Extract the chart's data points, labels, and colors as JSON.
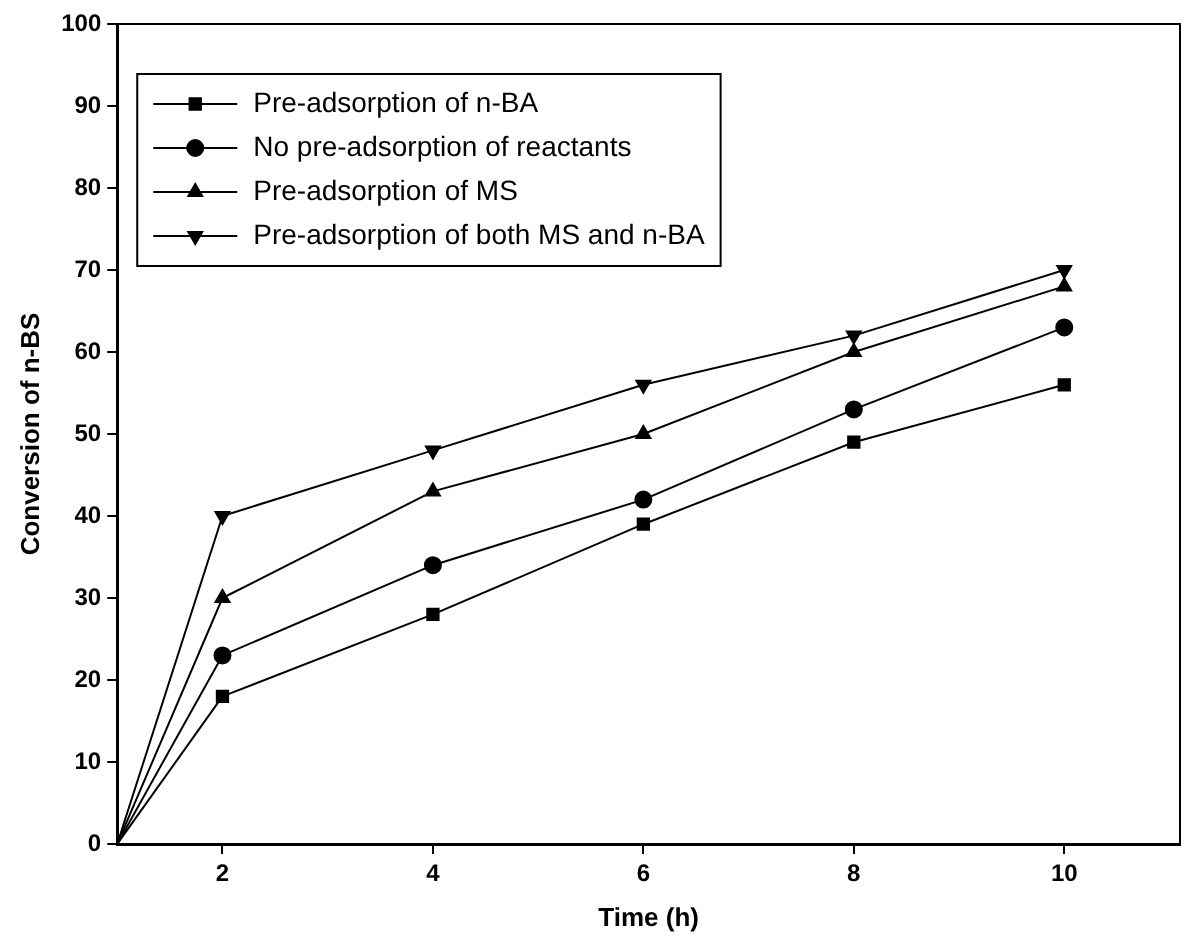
{
  "chart_data": {
    "type": "line",
    "xlabel": "Time (h)",
    "ylabel": "Conversion of n-BS",
    "x": [
      1,
      2,
      4,
      6,
      8,
      10
    ],
    "series": [
      {
        "name": "Pre-adsorption of n-BA",
        "color": "#000000",
        "marker": "square",
        "values": [
          0,
          18,
          28,
          39,
          49,
          56
        ]
      },
      {
        "name": "No pre-adsorption of reactants",
        "color": "#000000",
        "marker": "circle",
        "values": [
          0,
          23,
          34,
          42,
          53,
          63
        ]
      },
      {
        "name": "Pre-adsorption of MS",
        "color": "#000000",
        "marker": "triangle",
        "values": [
          0,
          30,
          43,
          50,
          60,
          68
        ]
      },
      {
        "name": "Pre-adsorption of both MS and n-BA",
        "color": "#000000",
        "marker": "triangle-down",
        "values": [
          0,
          40,
          48,
          56,
          62,
          70
        ]
      }
    ],
    "xlim": [
      1,
      11.1
    ],
    "xticks": [
      2,
      4,
      6,
      8,
      10
    ],
    "ylim": [
      0,
      100
    ],
    "yticks": [
      0,
      10,
      20,
      30,
      40,
      50,
      60,
      70,
      80,
      90,
      100
    ],
    "grid": false,
    "legend": "top left",
    "line_style": "solid"
  }
}
